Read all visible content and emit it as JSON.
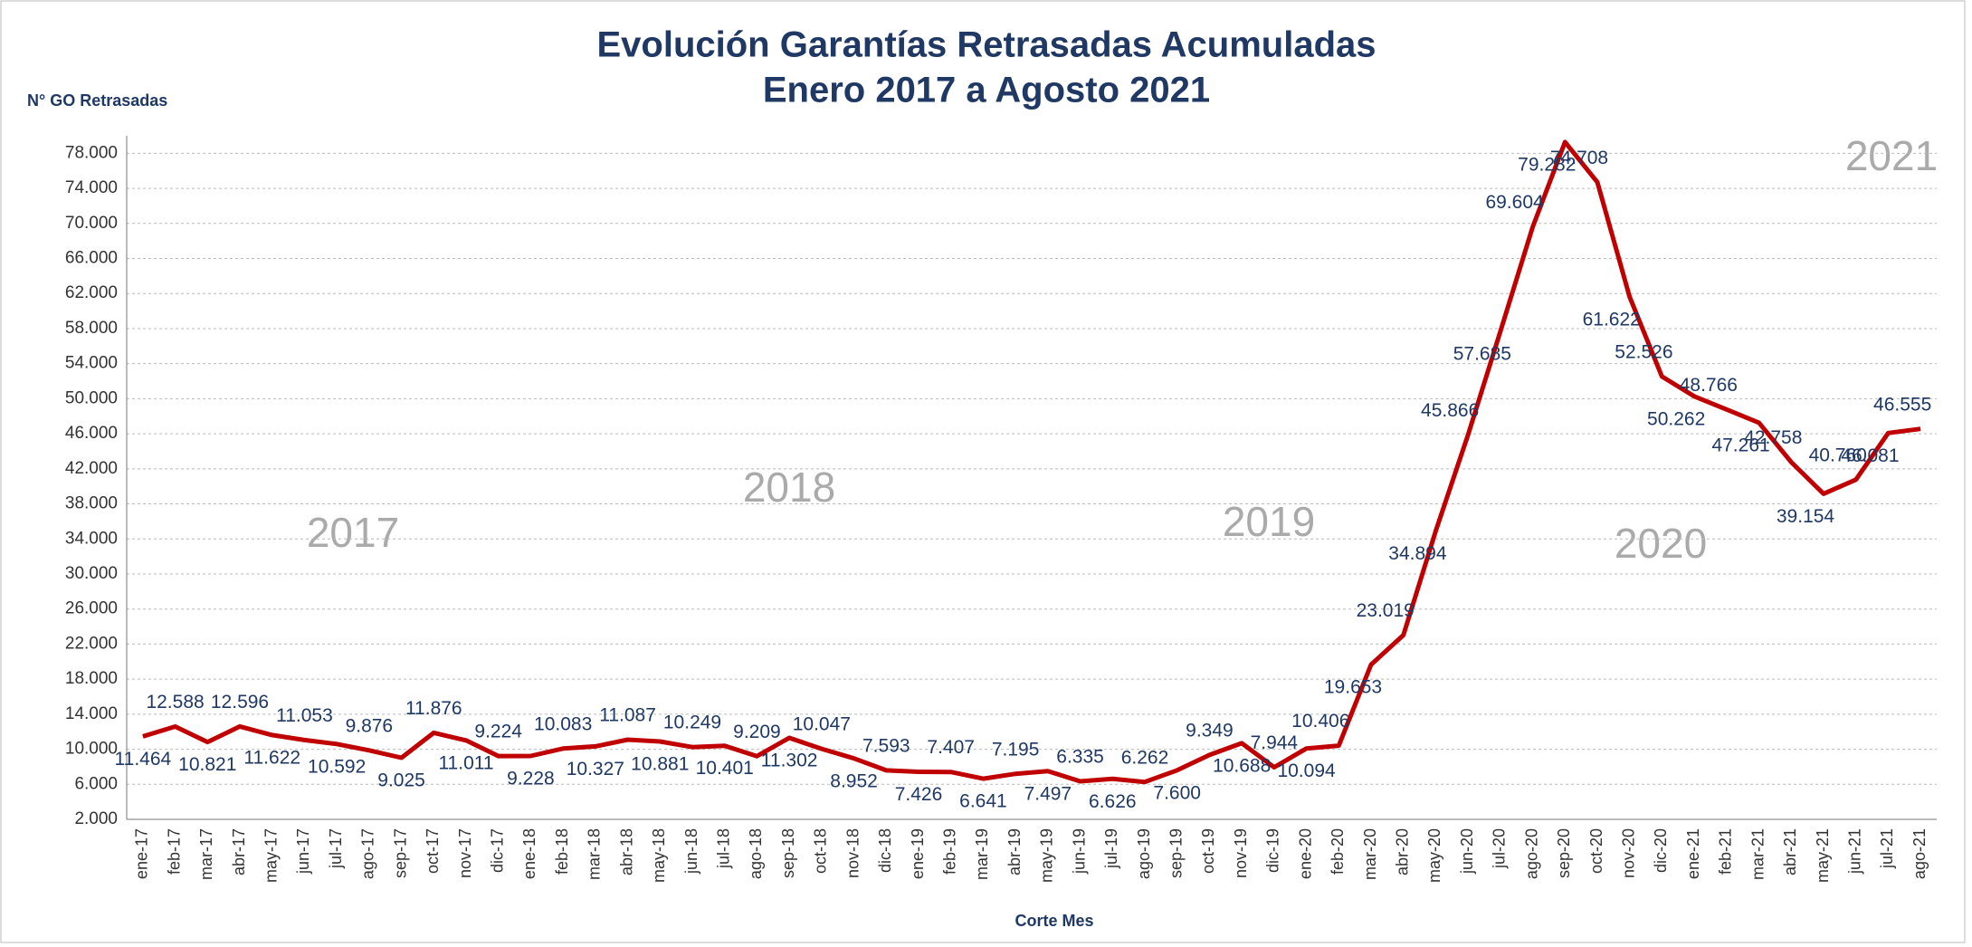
{
  "chart_data": {
    "type": "line",
    "title": "Evolución Garantías Retrasadas Acumuladas",
    "subtitle": "Enero 2017 a Agosto 2021",
    "y_label": "N° GO Retrasadas",
    "x_label": "Corte Mes",
    "annotations": [
      "2017",
      "2018",
      "2019",
      "2020",
      "2021"
    ],
    "categories": [
      "ene-17",
      "feb-17",
      "mar-17",
      "abr-17",
      "may-17",
      "jun-17",
      "jul-17",
      "ago-17",
      "sep-17",
      "oct-17",
      "nov-17",
      "dic-17",
      "ene-18",
      "feb-18",
      "mar-18",
      "abr-18",
      "may-18",
      "jun-18",
      "jul-18",
      "ago-18",
      "sep-18",
      "oct-18",
      "nov-18",
      "dic-18",
      "ene-19",
      "feb-19",
      "mar-19",
      "abr-19",
      "may-19",
      "jun-19",
      "jul-19",
      "ago-19",
      "sep-19",
      "oct-19",
      "nov-19",
      "dic-19",
      "ene-20",
      "feb-20",
      "mar-20",
      "abr-20",
      "may-20",
      "jun-20",
      "jul-20",
      "ago-20",
      "sep-20",
      "oct-20",
      "nov-20",
      "dic-20",
      "ene-21",
      "feb-21",
      "mar-21",
      "abr-21",
      "may-21",
      "jun-21",
      "jul-21",
      "ago-21"
    ],
    "series": [
      {
        "name": "N° GO Retrasadas",
        "color": "#c00000",
        "values": [
          11464,
          12588,
          10821,
          12596,
          11622,
          11053,
          10592,
          9876,
          9025,
          11876,
          11011,
          9224,
          9228,
          10083,
          10327,
          11087,
          10881,
          10249,
          10401,
          9209,
          11302,
          10047,
          8952,
          7593,
          7426,
          7407,
          6641,
          7195,
          7497,
          6335,
          6626,
          6262,
          7600,
          9349,
          10688,
          7944,
          10094,
          10406,
          19653,
          23019,
          34894,
          45866,
          57685,
          69604,
          79282,
          74708,
          61622,
          52526,
          50262,
          48766,
          47261,
          42758,
          39154,
          40760,
          46081,
          46555
        ],
        "value_labels": [
          "11.464",
          "12.588",
          "10.821",
          "12.596",
          "11.622",
          "11.053",
          "10.592",
          "9.876",
          "9.025",
          "11.876",
          "11.011",
          "9.224",
          "9.228",
          "10.083",
          "10.327",
          "11.087",
          "10.881",
          "10.249",
          "10.401",
          "9.209",
          "11.302",
          "10.047",
          "8.952",
          "7.593",
          "7.426",
          "7.407",
          "6.641",
          "7.195",
          "7.497",
          "6.335",
          "6.626",
          "6.262",
          "7.600",
          "9.349",
          "10.688",
          "7.944",
          "10.094",
          "10.406",
          "19.653",
          "23.019",
          "34.894",
          "45.866",
          "57.685",
          "69.604",
          "79.282",
          "74.708",
          "61.622",
          "52.526",
          "50.262",
          "48.766",
          "47.261",
          "42.758",
          "39.154",
          "40.760",
          "46.081",
          "46.555"
        ]
      }
    ],
    "ylim": [
      2000,
      80000
    ],
    "yticks": [
      {
        "value": 2000,
        "label": "2.000"
      },
      {
        "value": 6000,
        "label": "6.000"
      },
      {
        "value": 10000,
        "label": "10.000"
      },
      {
        "value": 14000,
        "label": "14.000"
      },
      {
        "value": 18000,
        "label": "18.000"
      },
      {
        "value": 22000,
        "label": "22.000"
      },
      {
        "value": 26000,
        "label": "26.000"
      },
      {
        "value": 30000,
        "label": "30.000"
      },
      {
        "value": 34000,
        "label": "34.000"
      },
      {
        "value": 38000,
        "label": "38.000"
      },
      {
        "value": 42000,
        "label": "42.000"
      },
      {
        "value": 46000,
        "label": "46.000"
      },
      {
        "value": 50000,
        "label": "50.000"
      },
      {
        "value": 54000,
        "label": "54.000"
      },
      {
        "value": 58000,
        "label": "58.000"
      },
      {
        "value": 62000,
        "label": "62.000"
      },
      {
        "value": 66000,
        "label": "66.000"
      },
      {
        "value": 70000,
        "label": "70.000"
      },
      {
        "value": 74000,
        "label": "74.000"
      },
      {
        "value": 78000,
        "label": "78.000"
      }
    ],
    "grid": true
  }
}
